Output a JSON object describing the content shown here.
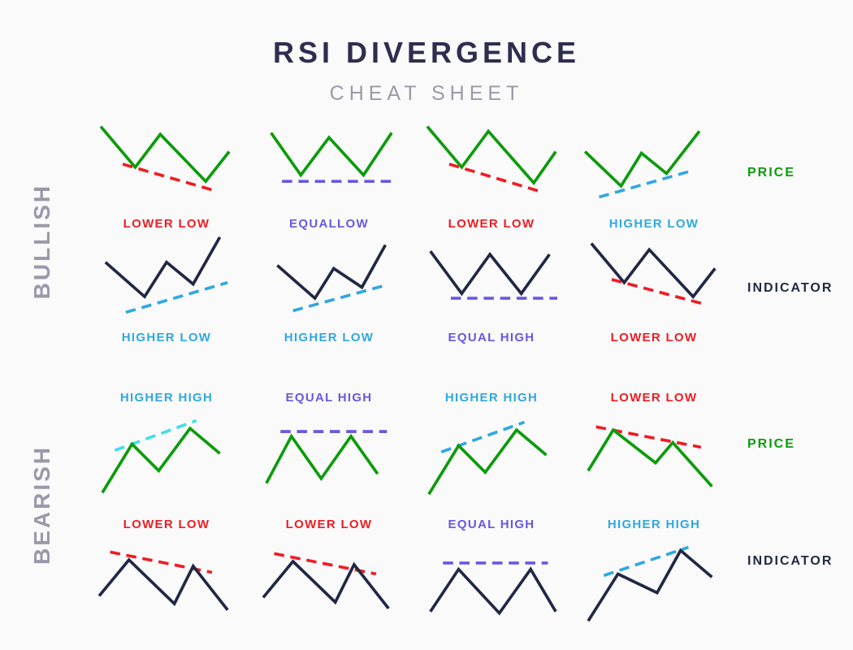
{
  "title": "RSI DIVERGENCE",
  "subtitle": "CHEAT SHEET",
  "palette": {
    "navyTitle": "#2f2d4f",
    "navy": "#212844",
    "green": "#0b9c0b",
    "red": "#ee1d23",
    "blue": "#2fa8e1",
    "cyan": "#3fdeee",
    "purple": "#6659e2",
    "gray": "#9b99a9"
  },
  "sections": [
    {
      "label": "BULLISH",
      "rows": [
        {
          "side_label": "PRICE",
          "side_color": "green",
          "cells": [
            {
              "label": "LOWER LOW",
              "color": "red",
              "line": "green",
              "dash_color": "red",
              "zig": [
                [
                  6,
                  8
                ],
                [
                  50,
                  60
                ],
                [
                  82,
                  18
                ],
                [
                  140,
                  78
                ],
                [
                  170,
                  40
                ]
              ],
              "dash": [
                [
                  34,
                  56
                ],
                [
                  152,
                  90
                ]
              ]
            },
            {
              "label": "EQUALLOW",
              "color": "purple",
              "line": "green",
              "dash_color": "purple",
              "zig": [
                [
                  16,
                  16
                ],
                [
                  54,
                  70
                ],
                [
                  90,
                  22
                ],
                [
                  134,
                  70
                ],
                [
                  170,
                  16
                ]
              ],
              "dash": [
                [
                  30,
                  78
                ],
                [
                  170,
                  78
                ]
              ]
            },
            {
              "label": "LOWER LOW",
              "color": "red",
              "line": "green",
              "dash_color": "red",
              "zig": [
                [
                  8,
                  8
                ],
                [
                  52,
                  60
                ],
                [
                  86,
                  14
                ],
                [
                  144,
                  80
                ],
                [
                  172,
                  40
                ]
              ],
              "dash": [
                [
                  36,
                  56
                ],
                [
                  156,
                  92
                ]
              ]
            },
            {
              "label": "HIGHER LOW",
              "color": "blue",
              "line": "green",
              "dash_color": "blue",
              "zig": [
                [
                  2,
                  40
                ],
                [
                  48,
                  84
                ],
                [
                  74,
                  42
                ],
                [
                  106,
                  68
                ],
                [
                  148,
                  14
                ]
              ],
              "dash": [
                [
                  20,
                  98
                ],
                [
                  140,
                  64
                ]
              ]
            }
          ]
        },
        {
          "side_label": "INDICATOR",
          "side_color": "navy",
          "cells": [
            {
              "label": "HIGHER LOW",
              "color": "blue",
              "line": "navy",
              "dash_color": "blue",
              "zig": [
                [
                  12,
                  36
                ],
                [
                  62,
                  80
                ],
                [
                  90,
                  36
                ],
                [
                  124,
                  64
                ],
                [
                  158,
                  4
                ]
              ],
              "dash": [
                [
                  38,
                  100
                ],
                [
                  168,
                  62
                ]
              ]
            },
            {
              "label": "HIGHER LOW",
              "color": "blue",
              "line": "navy",
              "dash_color": "blue",
              "zig": [
                [
                  24,
                  40
                ],
                [
                  72,
                  82
                ],
                [
                  96,
                  44
                ],
                [
                  132,
                  68
                ],
                [
                  162,
                  14
                ]
              ],
              "dash": [
                [
                  44,
                  98
                ],
                [
                  160,
                  66
                ]
              ]
            },
            {
              "label": "EQUAL HIGH",
              "color": "purple",
              "line": "navy",
              "dash_color": "purple",
              "zig": [
                [
                  12,
                  22
                ],
                [
                  52,
                  76
                ],
                [
                  88,
                  26
                ],
                [
                  128,
                  76
                ],
                [
                  164,
                  26
                ]
              ],
              "dash": [
                [
                  38,
                  82
                ],
                [
                  174,
                  82
                ]
              ]
            },
            {
              "label": "LOWER LOW",
              "color": "red",
              "line": "navy",
              "dash_color": "red",
              "zig": [
                [
                  10,
                  12
                ],
                [
                  52,
                  62
                ],
                [
                  84,
                  20
                ],
                [
                  140,
                  80
                ],
                [
                  168,
                  44
                ]
              ],
              "dash": [
                [
                  36,
                  58
                ],
                [
                  156,
                  90
                ]
              ]
            }
          ]
        }
      ]
    },
    {
      "label": "BEARISH",
      "rows": [
        {
          "side_label": "PRICE",
          "side_color": "green",
          "cells": [
            {
              "label": "HIGHER HIGH",
              "color": "blue",
              "line": "green",
              "dash_color": "cyan",
              "zig": [
                [
                  8,
                  102
                ],
                [
                  46,
                  40
                ],
                [
                  80,
                  74
                ],
                [
                  120,
                  20
                ],
                [
                  158,
                  52
                ]
              ],
              "dash": [
                [
                  24,
                  48
                ],
                [
                  128,
                  10
                ]
              ]
            },
            {
              "label": "EQUAL HIGH",
              "color": "purple",
              "line": "green",
              "dash_color": "purple",
              "zig": [
                [
                  10,
                  90
                ],
                [
                  42,
                  30
                ],
                [
                  80,
                  84
                ],
                [
                  118,
                  30
                ],
                [
                  152,
                  78
                ]
              ],
              "dash": [
                [
                  28,
                  24
                ],
                [
                  164,
                  24
                ]
              ]
            },
            {
              "label": "HIGHER HIGH",
              "color": "blue",
              "line": "green",
              "dash_color": "blue",
              "zig": [
                [
                  10,
                  104
                ],
                [
                  48,
                  42
                ],
                [
                  82,
                  76
                ],
                [
                  122,
                  22
                ],
                [
                  160,
                  54
                ]
              ],
              "dash": [
                [
                  26,
                  50
                ],
                [
                  132,
                  12
                ]
              ]
            },
            {
              "label": "LOWER LOW",
              "color": "red",
              "line": "green",
              "dash_color": "red",
              "zig": [
                [
                  6,
                  74
                ],
                [
                  38,
                  22
                ],
                [
                  92,
                  64
                ],
                [
                  114,
                  38
                ],
                [
                  164,
                  94
                ]
              ],
              "dash": [
                [
                  16,
                  18
                ],
                [
                  150,
                  44
                ]
              ]
            }
          ]
        },
        {
          "side_label": "INDICATOR",
          "side_color": "navy",
          "cells": [
            {
              "label": "LOWER LOW",
              "color": "red",
              "line": "navy",
              "dash_color": "red",
              "zig": [
                [
                  4,
                  72
                ],
                [
                  42,
                  26
                ],
                [
                  100,
                  82
                ],
                [
                  124,
                  34
                ],
                [
                  168,
                  90
                ]
              ],
              "dash": [
                [
                  18,
                  16
                ],
                [
                  148,
                  42
                ]
              ]
            },
            {
              "label": "LOWER LOW",
              "color": "red",
              "line": "navy",
              "dash_color": "red",
              "zig": [
                [
                  6,
                  74
                ],
                [
                  44,
                  28
                ],
                [
                  98,
                  80
                ],
                [
                  122,
                  32
                ],
                [
                  166,
                  88
                ]
              ],
              "dash": [
                [
                  20,
                  18
                ],
                [
                  150,
                  44
                ]
              ]
            },
            {
              "label": "EQUAL HIGH",
              "color": "purple",
              "line": "navy",
              "dash_color": "purple",
              "zig": [
                [
                  12,
                  92
                ],
                [
                  48,
                  38
                ],
                [
                  100,
                  94
                ],
                [
                  140,
                  38
                ],
                [
                  172,
                  92
                ]
              ],
              "dash": [
                [
                  28,
                  30
                ],
                [
                  162,
                  30
                ]
              ]
            },
            {
              "label": "HIGHER HIGH",
              "color": "blue",
              "line": "navy",
              "dash_color": "blue",
              "zig": [
                [
                  6,
                  104
                ],
                [
                  44,
                  44
                ],
                [
                  94,
                  68
                ],
                [
                  124,
                  14
                ],
                [
                  164,
                  48
                ]
              ],
              "dash": [
                [
                  26,
                  46
                ],
                [
                  134,
                  10
                ]
              ]
            }
          ]
        }
      ]
    }
  ]
}
